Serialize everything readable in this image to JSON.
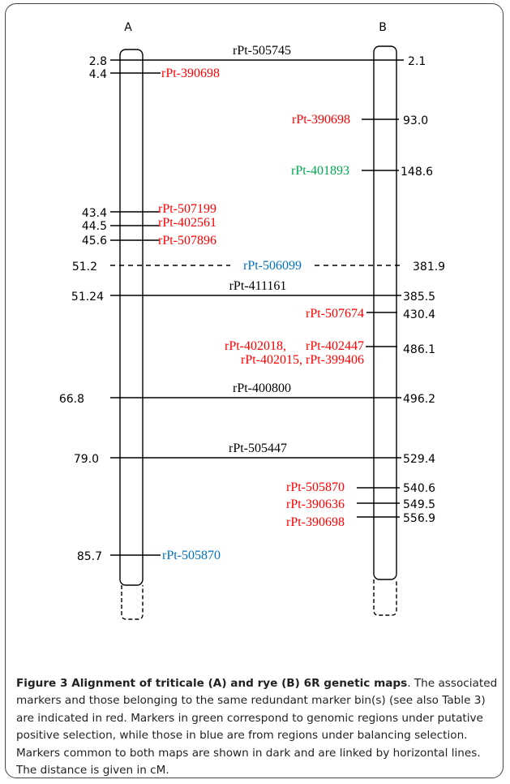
{
  "figure": {
    "map_a_label": "A",
    "map_b_label": "B",
    "colors": {
      "dark": "#000000",
      "red": "#ff0000",
      "green": "#00a651",
      "blue": "#0070c0"
    },
    "common_markers": [
      {
        "name": "rPt-505745",
        "a_pos": "2.8",
        "b_pos": "2.1",
        "style": "solid"
      },
      {
        "name": "rPt-506099",
        "a_pos": "51.2",
        "b_pos": "381.9",
        "style": "dashed",
        "color": "blue"
      },
      {
        "name": "rPt-411161",
        "a_pos": "51.24",
        "b_pos": "385.5",
        "style": "solid"
      },
      {
        "name": "rPt-400800",
        "a_pos": "66.8",
        "b_pos": "496.2",
        "style": "solid"
      },
      {
        "name": "rPt-505447",
        "a_pos": "79.0",
        "b_pos": "529.4",
        "style": "solid"
      }
    ],
    "a_markers": [
      {
        "name": "rPt-390698",
        "pos": "4.4",
        "color": "red"
      },
      {
        "name": "rPt-507199",
        "pos": "43.4",
        "color": "red"
      },
      {
        "name": "rPt-402561",
        "pos": "44.5",
        "color": "red"
      },
      {
        "name": "rPt-507896",
        "pos": "45.6",
        "color": "red"
      },
      {
        "name": "rPt-505870",
        "pos": "85.7",
        "color": "blue"
      }
    ],
    "b_markers": [
      {
        "name": "rPt-390698",
        "pos": "93.0",
        "color": "red"
      },
      {
        "name": "rPt-401893",
        "pos": "148.6",
        "color": "green"
      },
      {
        "name": "rPt-507674",
        "pos": "430.4",
        "color": "red"
      },
      {
        "name": "rPt-402018,      rPt-402447",
        "name2": "rPt-402015, rPt-399406",
        "pos": "486.1",
        "color": "red"
      },
      {
        "name": "rPt-505870",
        "pos": "540.6",
        "color": "red"
      },
      {
        "name": "rPt-390636",
        "pos": "549.5",
        "color": "red"
      },
      {
        "name": "rPt-390698",
        "pos": "556.9",
        "color": "red"
      }
    ]
  },
  "caption": {
    "title": "Figure 3 Alignment of triticale (A) and rye (B) 6R genetic maps",
    "body": ". The associated markers and those belonging to the same redundant marker bin(s) (see also Table 3) are indicated in red. Markers in green correspond to genomic regions under putative positive selection, while those in blue are from regions under balancing selection. Markers common to both maps are shown in dark and are linked by horizontal lines. The distance is given in cM."
  }
}
